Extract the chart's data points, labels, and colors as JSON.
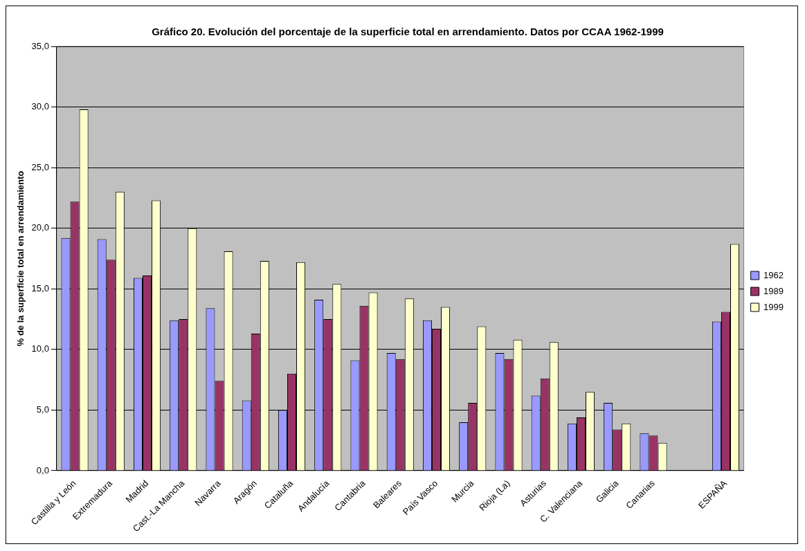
{
  "chart_data": {
    "type": "bar",
    "title": "Gráfico 20. Evolución del porcentaje de la superficie total en arrendamiento. Datos por CCAA 1962-1999",
    "ylabel": "% de la superficie total en arrendamiento",
    "categories": [
      "Castilla y León",
      "Extremadura",
      "Madrid",
      "Cast.-La Mancha",
      "Navarra",
      "Aragón",
      "Cataluña",
      "Andalucía",
      "Cantabria",
      "Baleares",
      "País Vasco",
      "Murcia",
      "Rioja (La)",
      "Asturias",
      "C. Valenciana",
      "Galicia",
      "Canarias",
      null,
      "ESPAÑA"
    ],
    "series": [
      {
        "name": "1962",
        "color": "#9999ff",
        "values": [
          19.2,
          19.1,
          15.9,
          12.4,
          13.4,
          5.8,
          5.0,
          14.1,
          9.1,
          9.7,
          12.4,
          4.0,
          9.7,
          6.2,
          3.9,
          5.6,
          3.1,
          null,
          12.3
        ]
      },
      {
        "name": "1989",
        "color": "#993366",
        "values": [
          22.2,
          17.4,
          16.1,
          12.5,
          7.4,
          11.3,
          8.0,
          12.5,
          13.6,
          9.2,
          11.7,
          5.6,
          9.2,
          7.6,
          4.4,
          3.4,
          2.9,
          null,
          13.1
        ]
      },
      {
        "name": "1999",
        "color": "#ffffcc",
        "values": [
          29.8,
          23.0,
          22.3,
          20.0,
          18.1,
          17.3,
          17.2,
          15.4,
          14.7,
          14.2,
          13.5,
          11.9,
          10.8,
          10.6,
          6.5,
          3.9,
          2.3,
          null,
          18.7
        ]
      }
    ],
    "ylim": [
      0,
      35
    ],
    "yticks": [
      {
        "value": 0,
        "label": "0,0"
      },
      {
        "value": 5,
        "label": "5,0"
      },
      {
        "value": 10,
        "label": "10,0"
      },
      {
        "value": 15,
        "label": "15,0"
      },
      {
        "value": 20,
        "label": "20,0"
      },
      {
        "value": 25,
        "label": "25,0"
      },
      {
        "value": 30,
        "label": "30,0"
      },
      {
        "value": 35,
        "label": "35,0"
      }
    ],
    "grid": "y",
    "legend": "right"
  }
}
